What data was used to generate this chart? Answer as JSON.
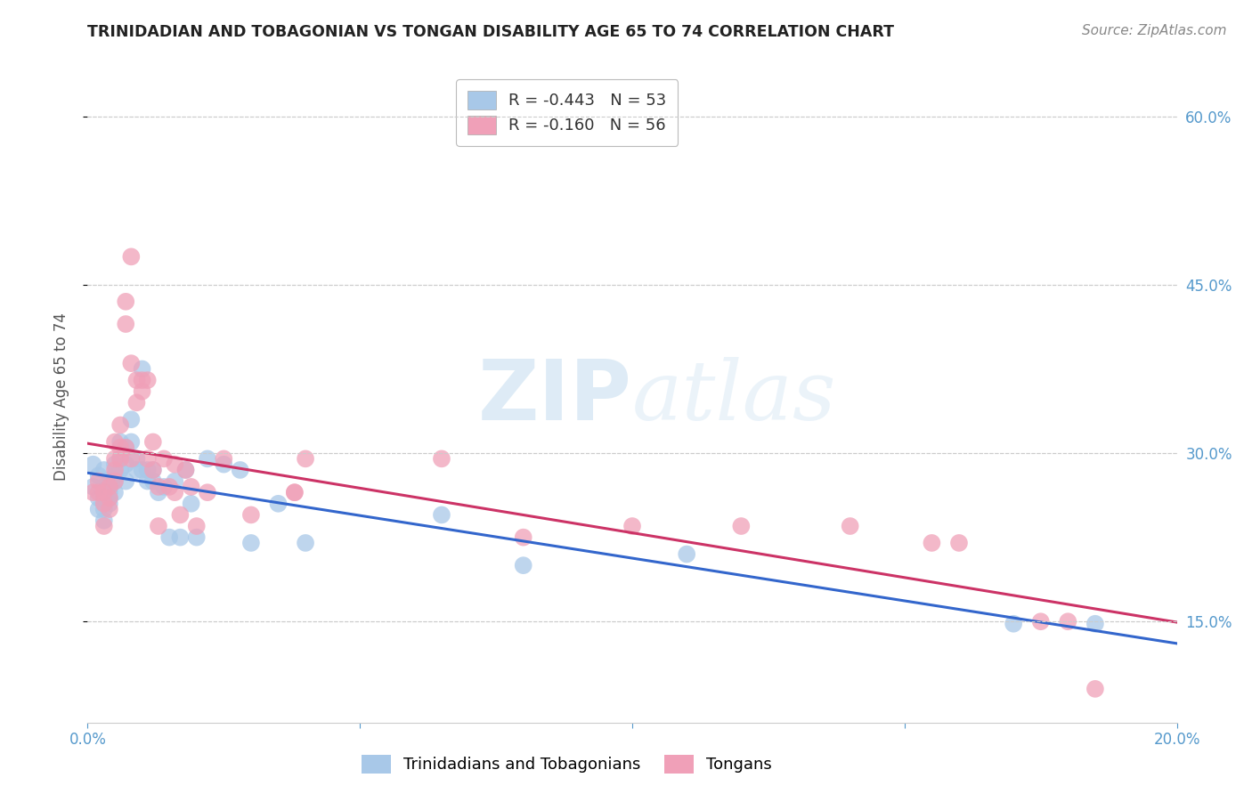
{
  "title": "TRINIDADIAN AND TOBAGONIAN VS TONGAN DISABILITY AGE 65 TO 74 CORRELATION CHART",
  "source": "Source: ZipAtlas.com",
  "ylabel": "Disability Age 65 to 74",
  "xlim": [
    0.0,
    0.2
  ],
  "ylim": [
    0.06,
    0.64
  ],
  "yticks": [
    0.15,
    0.3,
    0.45,
    0.6
  ],
  "ytick_labels": [
    "15.0%",
    "30.0%",
    "45.0%",
    "60.0%"
  ],
  "xticks": [
    0.0,
    0.05,
    0.1,
    0.15,
    0.2
  ],
  "xtick_labels": [
    "0.0%",
    "",
    "",
    "",
    "20.0%"
  ],
  "watermark_zip": "ZIP",
  "watermark_atlas": "atlas",
  "blue_R": "-0.443",
  "blue_N": 53,
  "pink_R": "-0.160",
  "pink_N": 56,
  "blue_color": "#a8c8e8",
  "pink_color": "#f0a0b8",
  "blue_line_color": "#3366cc",
  "pink_line_color": "#cc3366",
  "legend_blue_label": "Trinidadians and Tobagonians",
  "legend_pink_label": "Tongans",
  "blue_x": [
    0.001,
    0.001,
    0.002,
    0.002,
    0.002,
    0.003,
    0.003,
    0.003,
    0.003,
    0.003,
    0.004,
    0.004,
    0.004,
    0.004,
    0.005,
    0.005,
    0.005,
    0.005,
    0.006,
    0.006,
    0.006,
    0.007,
    0.007,
    0.007,
    0.008,
    0.008,
    0.009,
    0.009,
    0.01,
    0.01,
    0.011,
    0.011,
    0.012,
    0.012,
    0.013,
    0.014,
    0.015,
    0.016,
    0.017,
    0.018,
    0.019,
    0.02,
    0.022,
    0.025,
    0.028,
    0.03,
    0.035,
    0.04,
    0.065,
    0.08,
    0.11,
    0.17,
    0.185
  ],
  "blue_y": [
    0.29,
    0.27,
    0.28,
    0.26,
    0.25,
    0.27,
    0.26,
    0.25,
    0.24,
    0.285,
    0.27,
    0.26,
    0.265,
    0.255,
    0.29,
    0.28,
    0.275,
    0.265,
    0.31,
    0.295,
    0.285,
    0.305,
    0.29,
    0.275,
    0.33,
    0.31,
    0.295,
    0.285,
    0.375,
    0.285,
    0.285,
    0.275,
    0.285,
    0.275,
    0.265,
    0.27,
    0.225,
    0.275,
    0.225,
    0.285,
    0.255,
    0.225,
    0.295,
    0.29,
    0.285,
    0.22,
    0.255,
    0.22,
    0.245,
    0.2,
    0.21,
    0.148,
    0.148
  ],
  "pink_x": [
    0.001,
    0.002,
    0.002,
    0.003,
    0.003,
    0.003,
    0.004,
    0.004,
    0.004,
    0.005,
    0.005,
    0.005,
    0.005,
    0.006,
    0.006,
    0.006,
    0.007,
    0.007,
    0.007,
    0.008,
    0.008,
    0.008,
    0.009,
    0.009,
    0.01,
    0.01,
    0.011,
    0.011,
    0.012,
    0.012,
    0.013,
    0.013,
    0.014,
    0.015,
    0.016,
    0.016,
    0.017,
    0.018,
    0.019,
    0.02,
    0.022,
    0.025,
    0.03,
    0.038,
    0.038,
    0.04,
    0.065,
    0.08,
    0.1,
    0.12,
    0.14,
    0.155,
    0.16,
    0.175,
    0.18,
    0.185
  ],
  "pink_y": [
    0.265,
    0.275,
    0.265,
    0.265,
    0.255,
    0.235,
    0.27,
    0.26,
    0.25,
    0.31,
    0.295,
    0.285,
    0.275,
    0.325,
    0.305,
    0.295,
    0.435,
    0.415,
    0.305,
    0.475,
    0.38,
    0.295,
    0.365,
    0.345,
    0.365,
    0.355,
    0.365,
    0.295,
    0.31,
    0.285,
    0.27,
    0.235,
    0.295,
    0.27,
    0.29,
    0.265,
    0.245,
    0.285,
    0.27,
    0.235,
    0.265,
    0.295,
    0.245,
    0.265,
    0.265,
    0.295,
    0.295,
    0.225,
    0.235,
    0.235,
    0.235,
    0.22,
    0.22,
    0.15,
    0.15,
    0.09
  ]
}
